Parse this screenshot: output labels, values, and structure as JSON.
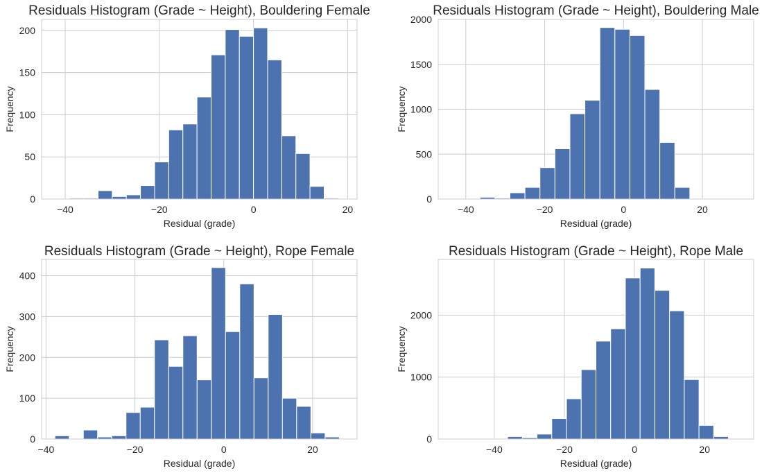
{
  "chart_data": [
    {
      "type": "bar",
      "title": "Residuals Histogram (Grade ~ Height), Bouldering Female",
      "xlabel": "Residual (grade)",
      "ylabel": "Frequency",
      "xlim": [
        -45,
        22
      ],
      "ylim": [
        0,
        213
      ],
      "xticks": [
        -40,
        -20,
        0,
        20
      ],
      "yticks": [
        0,
        50,
        100,
        150,
        200
      ],
      "bin_edges": [
        -42,
        -39,
        -36,
        -33,
        -30,
        -27,
        -24,
        -21,
        -18,
        -15,
        -12,
        -9,
        -6,
        -3,
        0,
        3,
        6,
        9,
        12,
        15,
        18,
        21
      ],
      "values": [
        0,
        1,
        1,
        10,
        3,
        5,
        16,
        44,
        82,
        89,
        121,
        171,
        201,
        193,
        203,
        165,
        75,
        54,
        15,
        1,
        0
      ],
      "color": "#4c72b0",
      "grid": true
    },
    {
      "type": "bar",
      "title": "Residuals Histogram (Grade ~ Height), Bouldering Male",
      "xlabel": "Residual (grade)",
      "ylabel": "Frequency",
      "xlim": [
        -47,
        33
      ],
      "ylim": [
        0,
        2000
      ],
      "xticks": [
        -40,
        -20,
        0,
        20
      ],
      "yticks": [
        0,
        500,
        1000,
        1500,
        2000
      ],
      "bin_edges": [
        -44,
        -40.2,
        -36.4,
        -32.6,
        -28.8,
        -25,
        -21.2,
        -17.4,
        -13.6,
        -9.8,
        -6,
        -2.2,
        1.6,
        5.4,
        9.2,
        13,
        16.8,
        20.6,
        24.4,
        28.2,
        32
      ],
      "values": [
        2,
        3,
        20,
        10,
        70,
        130,
        350,
        560,
        950,
        1100,
        1910,
        1890,
        1820,
        1220,
        630,
        130,
        5,
        2,
        1,
        1
      ],
      "color": "#4c72b0",
      "grid": true
    },
    {
      "type": "bar",
      "title": "Residuals Histogram (Grade ~ Height), Rope Female",
      "xlabel": "Residual (grade)",
      "ylabel": "Frequency",
      "xlim": [
        -41,
        30
      ],
      "ylim": [
        0,
        440
      ],
      "xticks": [
        -40,
        -20,
        0,
        20
      ],
      "yticks": [
        0,
        100,
        200,
        300,
        400
      ],
      "bin_edges": [
        -38,
        -34.8,
        -31.6,
        -28.4,
        -25.2,
        -22,
        -18.8,
        -15.6,
        -12.4,
        -9.2,
        -6,
        -2.8,
        0.4,
        3.6,
        6.8,
        10,
        13.2,
        16.4,
        19.6,
        22.8,
        26,
        29.2
      ],
      "values": [
        8,
        0,
        22,
        5,
        8,
        65,
        78,
        243,
        178,
        253,
        145,
        420,
        263,
        380,
        150,
        305,
        100,
        80,
        15,
        5,
        0
      ],
      "color": "#4c72b0",
      "grid": true
    },
    {
      "type": "bar",
      "title": "Residuals Histogram (Grade ~ Height), Rope Male",
      "xlabel": "Residual (grade)",
      "ylabel": "Frequency",
      "xlim": [
        -56,
        34
      ],
      "ylim": [
        0,
        2900
      ],
      "xticks": [
        -40,
        -20,
        0,
        20
      ],
      "yticks": [
        0,
        1000,
        2000
      ],
      "bin_edges": [
        -53,
        -48.8,
        -44.6,
        -40.4,
        -36.2,
        -32,
        -27.8,
        -23.6,
        -19.4,
        -15.2,
        -11,
        -6.8,
        -2.6,
        1.6,
        5.8,
        10,
        14.2,
        18.4,
        22.6,
        26.8,
        31
      ],
      "values": [
        1,
        2,
        5,
        10,
        40,
        20,
        80,
        330,
        650,
        1120,
        1580,
        1780,
        2600,
        2760,
        2400,
        2070,
        960,
        220,
        40,
        5
      ],
      "color": "#4c72b0",
      "grid": true
    }
  ]
}
